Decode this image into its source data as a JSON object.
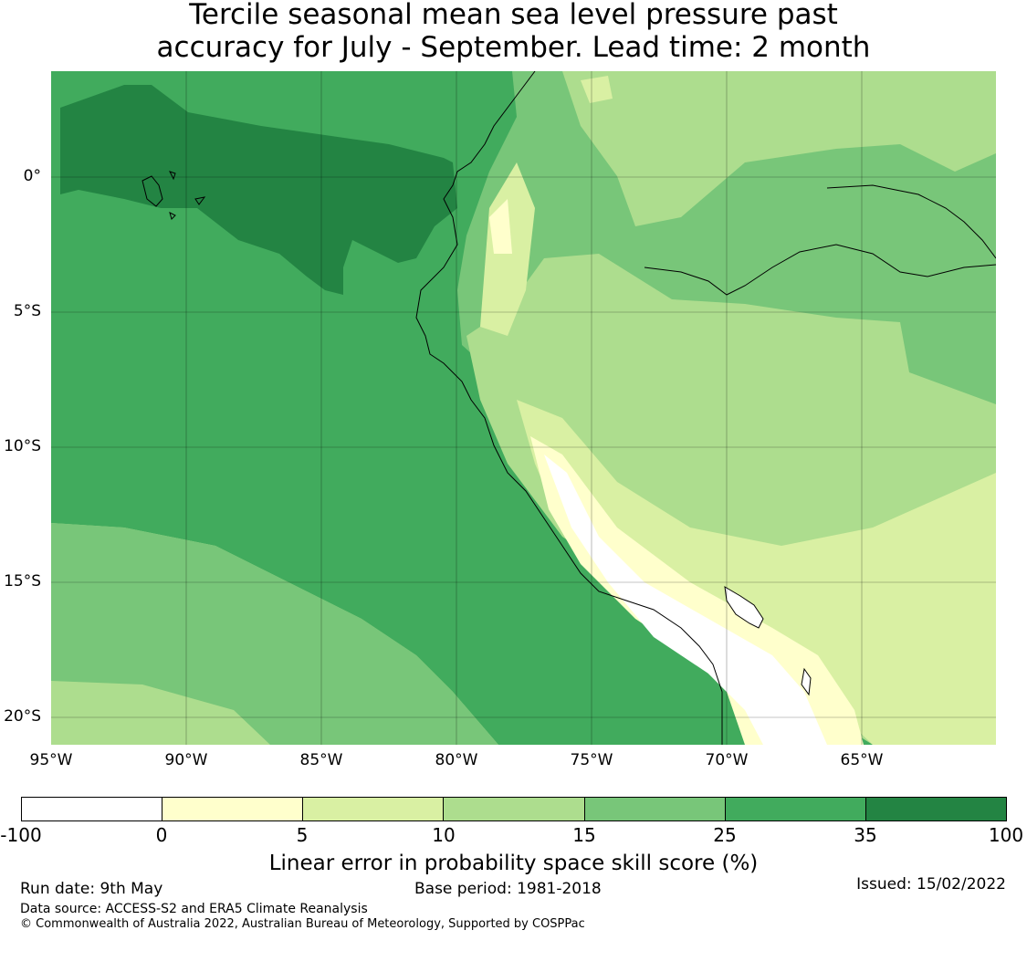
{
  "title": {
    "line1": "Tercile seasonal mean sea level pressure past",
    "line2": "accuracy for July - September. Lead time: 2 month"
  },
  "map": {
    "lat_labels": [
      "0°",
      "5°S",
      "10°S",
      "15°S",
      "20°S"
    ],
    "lon_labels": [
      "95°W",
      "90°W",
      "85°W",
      "80°W",
      "75°W",
      "70°W",
      "65°W"
    ],
    "extent": {
      "lon": [
        -95,
        -60
      ],
      "lat": [
        -21,
        3.8
      ]
    },
    "gridlines": true
  },
  "colorbar": {
    "ticks": [
      "-100",
      "0",
      "5",
      "10",
      "15",
      "25",
      "35",
      "100"
    ],
    "colors": [
      "#ffffff",
      "#ffffcc",
      "#d9f0a3",
      "#addd8e",
      "#78c679",
      "#41ab5d",
      "#238443"
    ],
    "label": "Linear error in probability space skill score (%)"
  },
  "footer": {
    "run_date": "Run date: 9th May",
    "base_period": "Base period: 1981-2018",
    "issued": "Issued: 15/02/2022",
    "data_source": "Data source: ACCESS-S2 and ERA5 Climate Reanalysis",
    "copyright": "© Commonwealth of Australia 2022, Australian Bureau of Meteorology, Supported by COSPPac"
  }
}
